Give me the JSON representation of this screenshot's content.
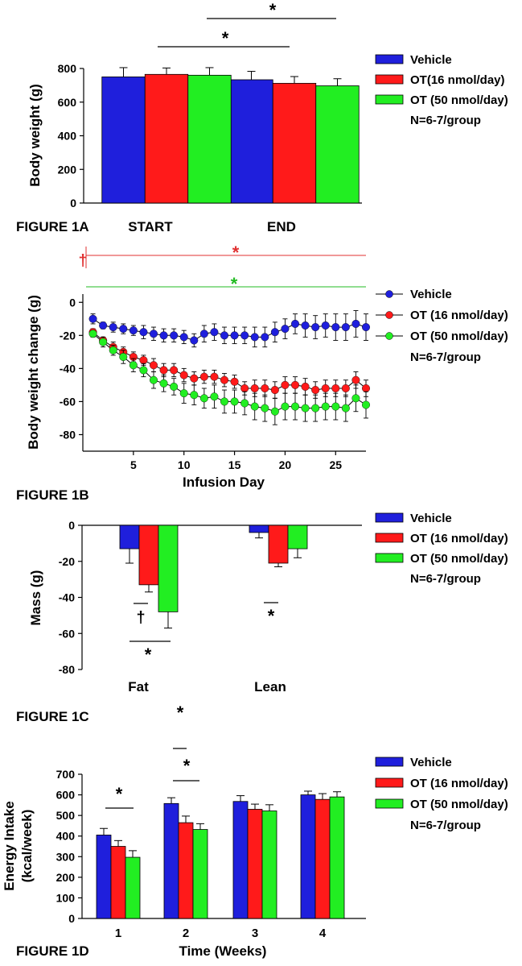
{
  "colors": {
    "vehicle": "#1f1fdc",
    "ot16": "#ff1a1a",
    "ot50": "#22ee22",
    "axis": "#000000",
    "sig_red": "#e03030",
    "sig_green": "#22bb22"
  },
  "legend_common": {
    "n_label": "N=6-7/group"
  },
  "chart_data": [
    {
      "id": "fig1a",
      "type": "bar",
      "figure_label": "FIGURE 1A",
      "ylabel": "Body weight (g)",
      "group_labels": [
        "START",
        "END"
      ],
      "ylim": [
        0,
        800
      ],
      "yticks": [
        0,
        200,
        400,
        600,
        800
      ],
      "series": [
        {
          "name": "Vehicle",
          "color_key": "vehicle",
          "values": [
            750,
            733
          ],
          "errors": [
            55,
            50
          ]
        },
        {
          "name": "OT(16 nmol/day)",
          "color_key": "ot16",
          "values": [
            765,
            712
          ],
          "errors": [
            38,
            40
          ]
        },
        {
          "name": "OT (50 nmol/day)",
          "color_key": "ot50",
          "values": [
            760,
            697
          ],
          "errors": [
            45,
            42
          ]
        }
      ],
      "significance": [
        "*",
        "*"
      ]
    },
    {
      "id": "fig1b",
      "type": "line",
      "figure_label": "FIGURE 1B",
      "xlabel": "Infusion Day",
      "ylabel": "Body weight change (g)",
      "xlim": [
        0,
        28
      ],
      "ylim": [
        -90,
        5
      ],
      "xticks": [
        5,
        10,
        15,
        20,
        25
      ],
      "yticks": [
        0,
        -20,
        -40,
        -60,
        -80
      ],
      "x": [
        1,
        2,
        3,
        4,
        5,
        6,
        7,
        8,
        9,
        10,
        11,
        12,
        13,
        14,
        15,
        16,
        17,
        18,
        19,
        20,
        21,
        22,
        23,
        24,
        25,
        26,
        27,
        28
      ],
      "series": [
        {
          "name": "Vehicle",
          "color_key": "vehicle",
          "values": [
            -10,
            -14,
            -15,
            -16,
            -17,
            -18,
            -19,
            -20,
            -20,
            -21,
            -23,
            -19,
            -18,
            -20,
            -20,
            -20,
            -21,
            -21,
            -18,
            -16,
            -13,
            -14,
            -15,
            -14,
            -15,
            -15,
            -13,
            -15
          ],
          "errors": [
            3,
            2,
            3,
            3,
            3,
            4,
            4,
            4,
            4,
            4,
            4,
            5,
            5,
            5,
            5,
            5,
            6,
            6,
            6,
            6,
            6,
            7,
            7,
            7,
            8,
            8,
            8,
            8
          ]
        },
        {
          "name": "OT (16 nmol/day)",
          "color_key": "ot16",
          "values": [
            -18,
            -23,
            -27,
            -30,
            -33,
            -35,
            -38,
            -41,
            -41,
            -44,
            -46,
            -45,
            -45,
            -47,
            -48,
            -52,
            -52,
            -52,
            -53,
            -50,
            -50,
            -51,
            -53,
            -52,
            -52,
            -52,
            -47,
            -52
          ],
          "errors": [
            2,
            2,
            3,
            3,
            3,
            3,
            4,
            4,
            4,
            4,
            4,
            4,
            4,
            4,
            4,
            4,
            5,
            5,
            5,
            5,
            5,
            5,
            5,
            5,
            5,
            5,
            5,
            5
          ]
        },
        {
          "name": "OT (50 nmol/day)",
          "color_key": "ot50",
          "values": [
            -19,
            -24,
            -29,
            -33,
            -38,
            -41,
            -47,
            -49,
            -51,
            -55,
            -56,
            -58,
            -57,
            -60,
            -60,
            -61,
            -63,
            -64,
            -66,
            -63,
            -63,
            -64,
            -64,
            -63,
            -63,
            -64,
            -58,
            -62
          ],
          "errors": [
            2,
            3,
            3,
            4,
            4,
            4,
            5,
            5,
            5,
            6,
            6,
            6,
            7,
            7,
            7,
            7,
            8,
            8,
            8,
            8,
            8,
            8,
            8,
            8,
            8,
            8,
            8,
            8
          ]
        }
      ],
      "significance": [
        {
          "symbol": "†",
          "color_key": "sig_red"
        },
        {
          "symbol": "*",
          "color_key": "sig_red"
        },
        {
          "symbol": "*",
          "color_key": "sig_green"
        }
      ]
    },
    {
      "id": "fig1c",
      "type": "bar",
      "figure_label": "FIGURE 1C",
      "ylabel": "Mass (g)",
      "group_labels": [
        "Fat",
        "Lean"
      ],
      "ylim": [
        -80,
        0
      ],
      "yticks": [
        0,
        -20,
        -40,
        -60,
        -80
      ],
      "series": [
        {
          "name": "Vehicle",
          "color_key": "vehicle",
          "values": [
            -13,
            -4
          ],
          "errors": [
            8,
            3
          ]
        },
        {
          "name": "OT (16 nmol/day)",
          "color_key": "ot16",
          "values": [
            -33,
            -21
          ],
          "errors": [
            4,
            2
          ]
        },
        {
          "name": "OT (50 nmol/day)",
          "color_key": "ot50",
          "values": [
            -48,
            -13
          ],
          "errors": [
            9,
            5
          ]
        }
      ],
      "significance": [
        "†",
        "*",
        "*"
      ]
    },
    {
      "id": "fig1d",
      "type": "bar",
      "figure_label": "FIGURE 1D",
      "xlabel": "Time (Weeks)",
      "ylabel_lines": [
        "Energy Intake",
        "(kcal/week)"
      ],
      "group_labels": [
        "1",
        "2",
        "3",
        "4"
      ],
      "ylim": [
        0,
        700
      ],
      "yticks": [
        0,
        100,
        200,
        300,
        400,
        500,
        600,
        700
      ],
      "series": [
        {
          "name": "Vehicle",
          "color_key": "vehicle",
          "values": [
            405,
            558,
            568,
            600
          ],
          "errors": [
            32,
            28,
            28,
            18
          ]
        },
        {
          "name": "OT (16 nmol/day)",
          "color_key": "ot16",
          "values": [
            350,
            465,
            530,
            578
          ],
          "errors": [
            28,
            32,
            25,
            28
          ]
        },
        {
          "name": "OT (50 nmol/day)",
          "color_key": "ot50",
          "values": [
            297,
            432,
            522,
            590
          ],
          "errors": [
            32,
            28,
            30,
            25
          ]
        }
      ],
      "significance": [
        "*",
        "*",
        "*"
      ]
    }
  ]
}
